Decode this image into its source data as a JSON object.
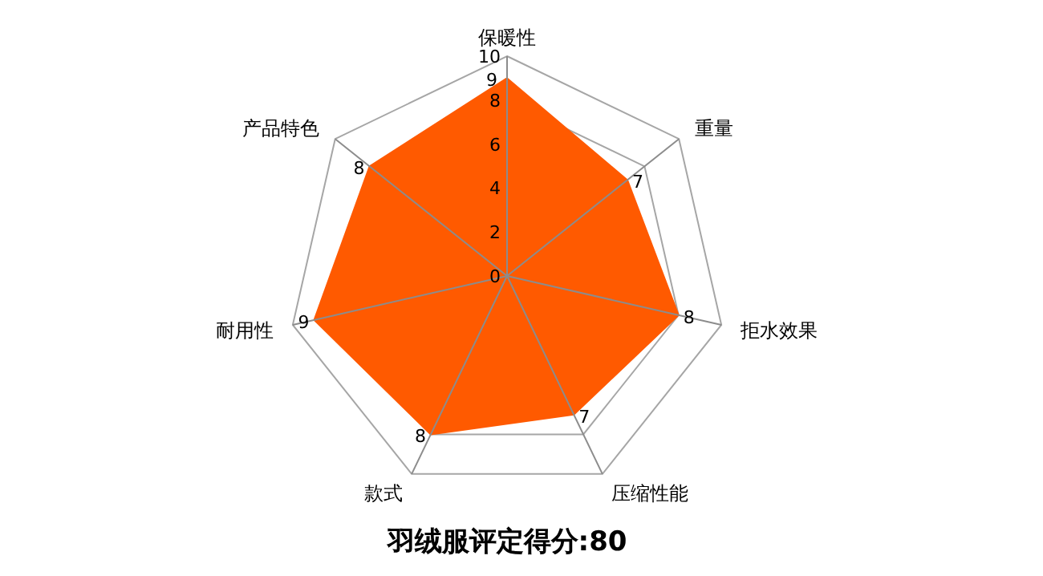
{
  "chart_data": {
    "type": "radar",
    "title": "羽绒服评定得分:80",
    "categories": [
      "保暖性",
      "重量",
      "拒水效果",
      "压缩性能",
      "款式",
      "耐用性",
      "产品特色"
    ],
    "series": [
      {
        "color": "#ff5a00",
        "values": [
          9,
          7,
          8,
          7,
          8,
          9,
          8
        ]
      }
    ],
    "ylim": [
      0,
      10
    ],
    "yticks": [
      0,
      2,
      4,
      6,
      8,
      10
    ],
    "grid": true,
    "data_labels": true
  }
}
